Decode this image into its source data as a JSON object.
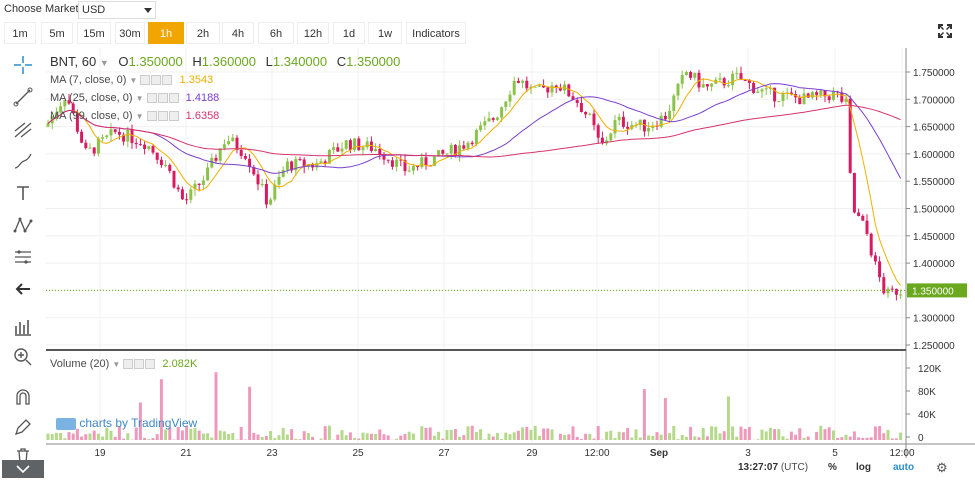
{
  "market": {
    "label": "Choose Market:",
    "selected": "USD"
  },
  "timeframes": [
    {
      "label": "1m",
      "active": false
    },
    {
      "label": "5m",
      "active": false
    },
    {
      "label": "15m",
      "active": false
    },
    {
      "label": "30m",
      "active": false
    },
    {
      "label": "1h",
      "active": true
    },
    {
      "label": "2h",
      "active": false
    },
    {
      "label": "4h",
      "active": false
    },
    {
      "label": "6h",
      "active": false
    },
    {
      "label": "12h",
      "active": false
    },
    {
      "label": "1d",
      "active": false
    },
    {
      "label": "1w",
      "active": false
    }
  ],
  "indicators_label": "Indicators",
  "symbol": {
    "name": "BNT, 60",
    "o_label": "O",
    "o": "1.350000",
    "h_label": "H",
    "h": "1.360000",
    "l_label": "L",
    "l": "1.340000",
    "c_label": "C",
    "c": "1.350000"
  },
  "ma": [
    {
      "label": "MA (7, close, 0)",
      "value": "1.3543",
      "color": "#f0b000"
    },
    {
      "label": "MA (25, close, 0)",
      "value": "1.4188",
      "color": "#7b3fd0"
    },
    {
      "label": "MA (99, close, 0)",
      "value": "1.6358",
      "color": "#d6336c"
    }
  ],
  "volume": {
    "label": "Volume (20)",
    "value": "2.082K"
  },
  "price_axis": [
    "1.750000",
    "1.700000",
    "1.650000",
    "1.600000",
    "1.550000",
    "1.500000",
    "1.450000",
    "1.400000",
    "1.350000",
    "1.300000",
    "1.250000"
  ],
  "current_price": "1.350000",
  "volume_axis": [
    "120K",
    "80K",
    "40K",
    "0"
  ],
  "time_axis": [
    "19",
    "21",
    "23",
    "25",
    "27",
    "29",
    "12:00",
    "Sep",
    "3",
    "5",
    "12:00"
  ],
  "watermark": "charts by TradingView",
  "status": {
    "time": "13:27:07",
    "tz": "(UTC)",
    "pct": "%",
    "log": "log",
    "auto": "auto"
  },
  "colors": {
    "up": "#8bc34a",
    "down": "#d81b60",
    "accent": "#f0a500",
    "price_tag": "#6aa81e"
  }
}
